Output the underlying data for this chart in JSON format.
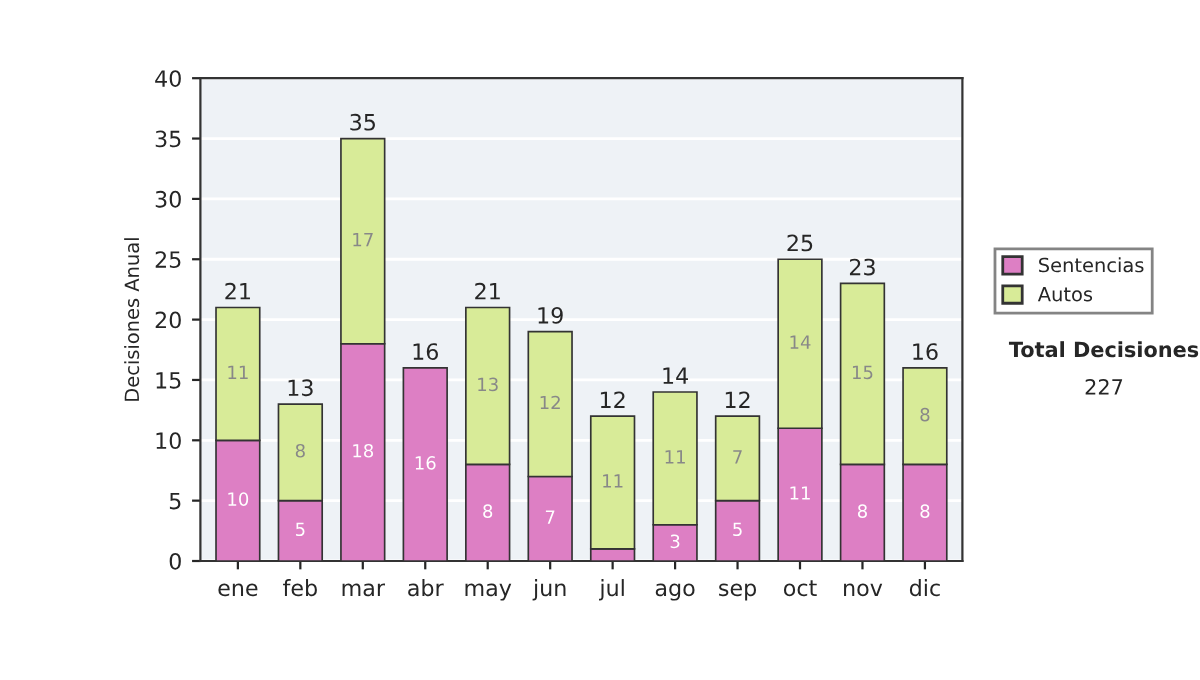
{
  "chart_data": {
    "type": "bar",
    "stacked": true,
    "ylabel": "Decisiones Anual",
    "categories": [
      "ene",
      "feb",
      "mar",
      "abr",
      "may",
      "jun",
      "jul",
      "ago",
      "sep",
      "oct",
      "nov",
      "dic"
    ],
    "series": [
      {
        "name": "Sentencias",
        "color": "#dd7fc4",
        "values": [
          10,
          5,
          18,
          16,
          8,
          7,
          1,
          3,
          5,
          11,
          8,
          8
        ],
        "value_labels": [
          "10",
          "5",
          "18",
          "16",
          "8",
          "7",
          null,
          "3",
          "5",
          "11",
          "8",
          "8"
        ]
      },
      {
        "name": "Autos",
        "color": "#d8eb98",
        "values": [
          11,
          8,
          17,
          0,
          13,
          12,
          11,
          11,
          7,
          14,
          15,
          8
        ],
        "value_labels": [
          "11",
          "8",
          "17",
          null,
          "13",
          "12",
          "11",
          "11",
          "7",
          "14",
          "15",
          "8"
        ]
      }
    ],
    "totals": [
      "21",
      "13",
      "35",
      "16",
      "21",
      "19",
      "12",
      "14",
      "12",
      "25",
      "23",
      "16"
    ],
    "ylim": [
      0,
      40
    ],
    "yticks": [
      0,
      5,
      10,
      15,
      20,
      25,
      30,
      35,
      40
    ],
    "grid": "y",
    "legend": "right",
    "annotations": [
      "Total Decisiones",
      "227"
    ]
  }
}
